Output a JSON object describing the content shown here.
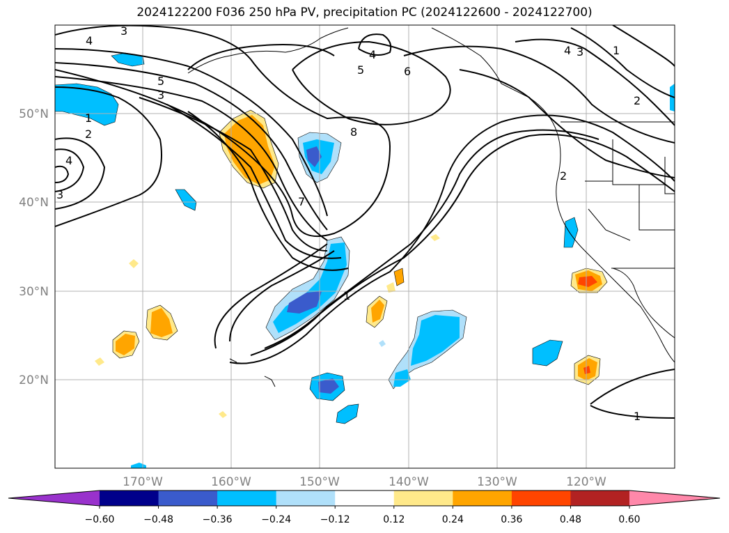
{
  "title": "2024122200 F036 250 hPa PV, precipitation PC (2024122600 - 2024122700)",
  "map": {
    "lat_labels": [
      "50°N",
      "40°N",
      "30°N",
      "20°N"
    ],
    "lon_labels": [
      "170°W",
      "160°W",
      "150°W",
      "140°W",
      "130°W",
      "120°W"
    ],
    "grid": true,
    "contour_labels": [
      "3",
      "4",
      "4",
      "5",
      "6",
      "4",
      "3",
      "1",
      "2",
      "1",
      "2",
      "4",
      "3",
      "8",
      "7",
      "1",
      "2",
      "1"
    ],
    "colorbar": {
      "ticks": [
        "−0.60",
        "−0.48",
        "−0.36",
        "−0.24",
        "−0.12",
        "0.12",
        "0.24",
        "0.36",
        "0.48",
        "0.60"
      ],
      "colors": [
        "#9932cc",
        "#00008b",
        "#3a5bcc",
        "#00bfff",
        "#b0e0fa",
        "#ffffff",
        "#ffe98a",
        "#ffa500",
        "#ff4500",
        "#b22222",
        "#ff88aa"
      ]
    }
  }
}
